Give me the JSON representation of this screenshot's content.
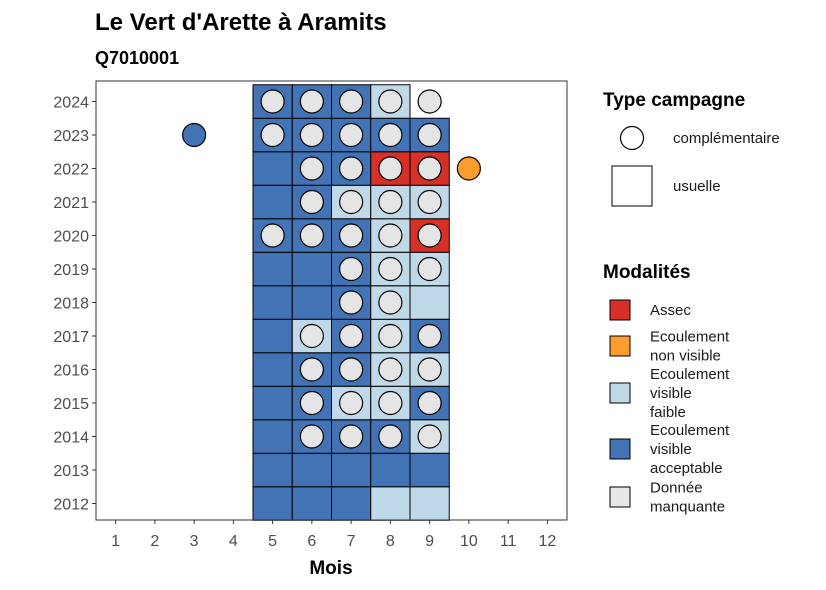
{
  "chart_data": {
    "type": "heatmap",
    "title": "Le Vert d'Arette à Aramits",
    "subtitle": "Q7010001",
    "xlabel": "Mois",
    "ylabel": "",
    "x_ticks": [
      "1",
      "2",
      "3",
      "4",
      "5",
      "6",
      "7",
      "8",
      "9",
      "10",
      "11",
      "12"
    ],
    "xlim": [
      0.5,
      12.5
    ],
    "years": [
      "2012",
      "2013",
      "2014",
      "2015",
      "2016",
      "2017",
      "2018",
      "2019",
      "2020",
      "2021",
      "2022",
      "2023",
      "2024"
    ],
    "grid": false,
    "colors": {
      "Assec": "#d73027",
      "Ecoulement non visible": "#fd9c2f",
      "Ecoulement visible faible": "#bfd9e8",
      "Ecoulement visible acceptable": "#4273b5",
      "Donnée manquante": "#e5e5e5"
    },
    "tiles": [
      {
        "year": "2012",
        "months": [
          5,
          6,
          7,
          8,
          9
        ],
        "values": [
          "Ecoulement visible acceptable",
          "Ecoulement visible acceptable",
          "Ecoulement visible acceptable",
          "Ecoulement visible faible",
          "Ecoulement visible faible"
        ]
      },
      {
        "year": "2013",
        "months": [
          5,
          6,
          7,
          8,
          9
        ],
        "values": [
          "Ecoulement visible acceptable",
          "Ecoulement visible acceptable",
          "Ecoulement visible acceptable",
          "Ecoulement visible acceptable",
          "Ecoulement visible acceptable"
        ]
      },
      {
        "year": "2014",
        "months": [
          5,
          6,
          7,
          8,
          9
        ],
        "values": [
          "Ecoulement visible acceptable",
          "Ecoulement visible acceptable",
          "Ecoulement visible acceptable",
          "Ecoulement visible acceptable",
          "Ecoulement visible faible"
        ]
      },
      {
        "year": "2015",
        "months": [
          5,
          6,
          7,
          8,
          9
        ],
        "values": [
          "Ecoulement visible acceptable",
          "Ecoulement visible acceptable",
          "Ecoulement visible faible",
          "Ecoulement visible faible",
          "Ecoulement visible acceptable"
        ]
      },
      {
        "year": "2016",
        "months": [
          5,
          6,
          7,
          8,
          9
        ],
        "values": [
          "Ecoulement visible acceptable",
          "Ecoulement visible acceptable",
          "Ecoulement visible acceptable",
          "Ecoulement visible faible",
          "Ecoulement visible faible"
        ]
      },
      {
        "year": "2017",
        "months": [
          5,
          6,
          7,
          8,
          9
        ],
        "values": [
          "Ecoulement visible acceptable",
          "Ecoulement visible faible",
          "Ecoulement visible acceptable",
          "Ecoulement visible faible",
          "Ecoulement visible acceptable"
        ]
      },
      {
        "year": "2018",
        "months": [
          5,
          6,
          7,
          8,
          9
        ],
        "values": [
          "Ecoulement visible acceptable",
          "Ecoulement visible acceptable",
          "Ecoulement visible acceptable",
          "Ecoulement visible faible",
          "Ecoulement visible faible"
        ]
      },
      {
        "year": "2019",
        "months": [
          5,
          6,
          7,
          8,
          9
        ],
        "values": [
          "Ecoulement visible acceptable",
          "Ecoulement visible acceptable",
          "Ecoulement visible acceptable",
          "Ecoulement visible faible",
          "Ecoulement visible faible"
        ]
      },
      {
        "year": "2020",
        "months": [
          5,
          6,
          7,
          8,
          9
        ],
        "values": [
          "Ecoulement visible acceptable",
          "Ecoulement visible acceptable",
          "Ecoulement visible acceptable",
          "Ecoulement visible faible",
          "Assec"
        ]
      },
      {
        "year": "2021",
        "months": [
          5,
          6,
          7,
          8,
          9
        ],
        "values": [
          "Ecoulement visible acceptable",
          "Ecoulement visible acceptable",
          "Ecoulement visible faible",
          "Ecoulement visible faible",
          "Ecoulement visible faible"
        ]
      },
      {
        "year": "2022",
        "months": [
          5,
          6,
          7,
          8,
          9
        ],
        "values": [
          "Ecoulement visible acceptable",
          "Ecoulement visible acceptable",
          "Ecoulement visible acceptable",
          "Assec",
          "Assec"
        ]
      },
      {
        "year": "2023",
        "months": [
          5,
          6,
          7,
          8,
          9
        ],
        "values": [
          "Ecoulement visible acceptable",
          "Ecoulement visible acceptable",
          "Ecoulement visible acceptable",
          "Ecoulement visible acceptable",
          "Ecoulement visible acceptable"
        ]
      },
      {
        "year": "2024",
        "months": [
          5,
          6,
          7,
          8
        ],
        "values": [
          "Ecoulement visible acceptable",
          "Ecoulement visible acceptable",
          "Ecoulement visible acceptable",
          "Ecoulement visible faible"
        ]
      }
    ],
    "points": [
      {
        "year": "2014",
        "months": [
          6,
          7,
          8,
          9
        ],
        "values": [
          "Donnée manquante",
          "Donnée manquante",
          "Donnée manquante",
          "Donnée manquante"
        ]
      },
      {
        "year": "2015",
        "months": [
          6,
          7,
          8,
          9
        ],
        "values": [
          "Donnée manquante",
          "Donnée manquante",
          "Donnée manquante",
          "Donnée manquante"
        ]
      },
      {
        "year": "2016",
        "months": [
          6,
          7,
          8,
          9
        ],
        "values": [
          "Donnée manquante",
          "Donnée manquante",
          "Donnée manquante",
          "Donnée manquante"
        ]
      },
      {
        "year": "2017",
        "months": [
          6,
          7,
          8,
          9
        ],
        "values": [
          "Donnée manquante",
          "Donnée manquante",
          "Donnée manquante",
          "Donnée manquante"
        ]
      },
      {
        "year": "2018",
        "months": [
          7,
          8
        ],
        "values": [
          "Donnée manquante",
          "Donnée manquante"
        ]
      },
      {
        "year": "2019",
        "months": [
          7,
          8,
          9
        ],
        "values": [
          "Donnée manquante",
          "Donnée manquante",
          "Donnée manquante"
        ]
      },
      {
        "year": "2020",
        "months": [
          5,
          6,
          7,
          8,
          9
        ],
        "values": [
          "Donnée manquante",
          "Donnée manquante",
          "Donnée manquante",
          "Donnée manquante",
          "Donnée manquante"
        ]
      },
      {
        "year": "2021",
        "months": [
          6,
          7,
          8,
          9
        ],
        "values": [
          "Donnée manquante",
          "Donnée manquante",
          "Donnée manquante",
          "Donnée manquante"
        ]
      },
      {
        "year": "2022",
        "months": [
          6,
          7,
          8,
          9,
          10
        ],
        "values": [
          "Donnée manquante",
          "Donnée manquante",
          "Donnée manquante",
          "Donnée manquante",
          "Ecoulement non visible"
        ]
      },
      {
        "year": "2023",
        "months": [
          3,
          5,
          6,
          7,
          8,
          9
        ],
        "values": [
          "Ecoulement visible acceptable",
          "Donnée manquante",
          "Donnée manquante",
          "Donnée manquante",
          "Donnée manquante",
          "Donnée manquante"
        ]
      },
      {
        "year": "2024",
        "months": [
          5,
          6,
          7,
          8,
          9
        ],
        "values": [
          "Donnée manquante",
          "Donnée manquante",
          "Donnée manquante",
          "Donnée manquante",
          "Donnée manquante"
        ]
      }
    ],
    "legend_type": {
      "title": "Type campagne",
      "items": [
        {
          "label": "complémentaire",
          "shape": "circle"
        },
        {
          "label": "usuelle",
          "shape": "square"
        }
      ]
    },
    "legend_modalites": {
      "title": "Modalités",
      "items": [
        {
          "key": "Assec",
          "lines": [
            "Assec"
          ]
        },
        {
          "key": "Ecoulement non visible",
          "lines": [
            "Ecoulement",
            "non visible"
          ]
        },
        {
          "key": "Ecoulement visible faible",
          "lines": [
            "Ecoulement",
            "visible",
            "faible"
          ]
        },
        {
          "key": "Ecoulement visible acceptable",
          "lines": [
            "Ecoulement",
            "visible",
            "acceptable"
          ]
        },
        {
          "key": "Donnée manquante",
          "lines": [
            "Donnée",
            "manquante"
          ]
        }
      ]
    },
    "legend_placement": "right"
  }
}
